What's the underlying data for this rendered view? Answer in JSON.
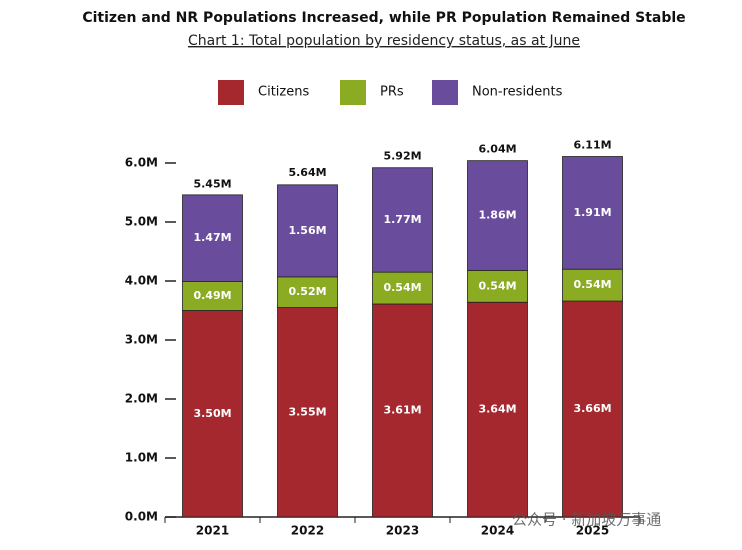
{
  "chart_data": {
    "type": "stacked_bar",
    "title": "Citizen and NR Populations Increased, while PR Population Remained Stable",
    "subtitle": "Chart 1: Total population by residency status, as at June",
    "categories": [
      "2021",
      "2022",
      "2023",
      "2024",
      "2025"
    ],
    "series": [
      {
        "name": "Citizens",
        "color": "#a4282e",
        "values": [
          3.5,
          3.55,
          3.61,
          3.64,
          3.66
        ],
        "value_labels": [
          "3.50M",
          "3.55M",
          "3.61M",
          "3.64M",
          "3.66M"
        ]
      },
      {
        "name": "PRs",
        "color": "#8aab22",
        "values": [
          0.49,
          0.52,
          0.54,
          0.54,
          0.54
        ],
        "value_labels": [
          "0.49M",
          "0.52M",
          "0.54M",
          "0.54M",
          "0.54M"
        ]
      },
      {
        "name": "Non-residents",
        "color": "#6a4c9c",
        "values": [
          1.47,
          1.56,
          1.77,
          1.86,
          1.91
        ],
        "value_labels": [
          "1.47M",
          "1.56M",
          "1.77M",
          "1.86M",
          "1.91M"
        ]
      }
    ],
    "totals": {
      "values": [
        5.45,
        5.64,
        5.92,
        6.04,
        6.11
      ],
      "value_labels": [
        "5.45M",
        "5.64M",
        "5.92M",
        "6.04M",
        "6.11M"
      ]
    },
    "ylim": [
      0,
      6.5
    ],
    "yticks": [
      {
        "value": 0,
        "label": "0.0M"
      },
      {
        "value": 1,
        "label": "1.0M"
      },
      {
        "value": 2,
        "label": "2.0M"
      },
      {
        "value": 3,
        "label": "3.0M"
      },
      {
        "value": 4,
        "label": "4.0M"
      },
      {
        "value": 5,
        "label": "5.0M"
      },
      {
        "value": 6,
        "label": "6.0M"
      }
    ],
    "legend": "top",
    "watermark": "公众号 · 新加坡万事通"
  }
}
